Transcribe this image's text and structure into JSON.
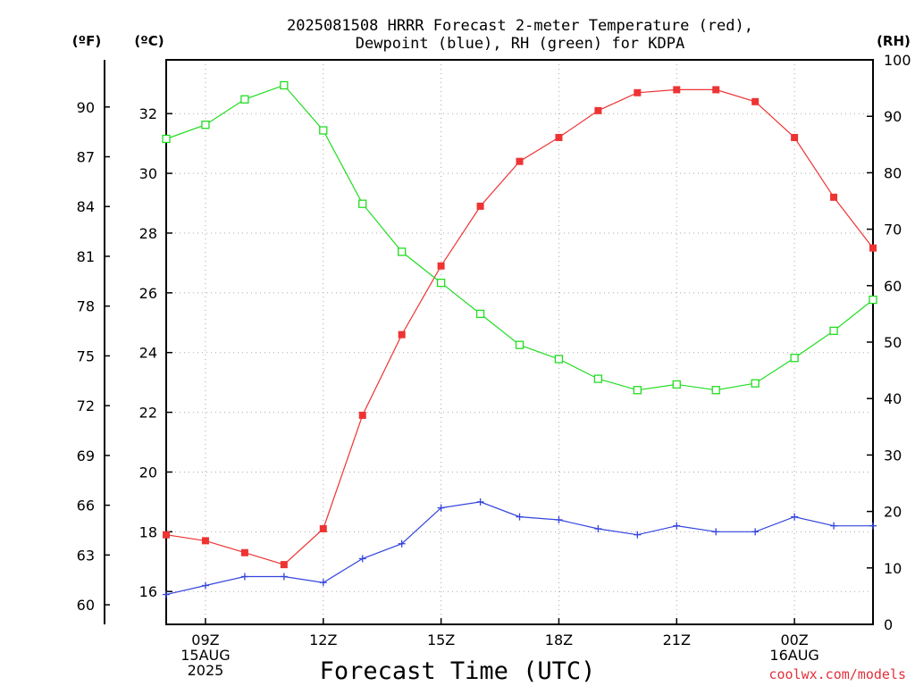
{
  "chart_data": {
    "type": "line",
    "title_line1": "2025081508 HRRR Forecast 2-meter Temperature (red),",
    "title_line2": "Dewpoint (blue), RH (green) for KDPA",
    "xlabel": "Forecast Time (UTC)",
    "credit": "coolwx.com/models",
    "x_ticks": [
      {
        "hour": 9,
        "lines": [
          "09Z",
          "15AUG",
          "2025"
        ]
      },
      {
        "hour": 12,
        "lines": [
          "12Z"
        ]
      },
      {
        "hour": 15,
        "lines": [
          "15Z"
        ]
      },
      {
        "hour": 18,
        "lines": [
          "18Z"
        ]
      },
      {
        "hour": 21,
        "lines": [
          "21Z"
        ]
      },
      {
        "hour": 24,
        "lines": [
          "00Z",
          "16AUG"
        ]
      }
    ],
    "xlim": [
      8,
      26
    ],
    "left_axis_f": {
      "label": "(ºF)",
      "ticks": [
        "60",
        "63",
        "66",
        "69",
        "72",
        "75",
        "78",
        "81",
        "84",
        "87",
        "90"
      ]
    },
    "left_axis_c": {
      "label": "(ºC)",
      "ylim": [
        14.9,
        33.8
      ],
      "ticks": [
        "16",
        "18",
        "20",
        "22",
        "24",
        "26",
        "28",
        "30",
        "32"
      ]
    },
    "right_axis_rh": {
      "label": "(RH)",
      "ylim": [
        0,
        100
      ],
      "ticks": [
        "0",
        "10",
        "20",
        "30",
        "40",
        "50",
        "60",
        "70",
        "80",
        "90",
        "100"
      ]
    },
    "x": [
      8,
      9,
      10,
      11,
      12,
      13,
      14,
      15,
      16,
      17,
      18,
      19,
      20,
      21,
      22,
      23,
      24,
      25,
      26
    ],
    "series": [
      {
        "name": "Temperature",
        "color": "#ee3333",
        "marker": "filled-square",
        "axis": "c",
        "values": [
          17.9,
          17.7,
          17.3,
          16.9,
          18.1,
          21.9,
          24.6,
          26.9,
          28.9,
          30.4,
          31.2,
          32.1,
          32.7,
          32.8,
          32.8,
          32.4,
          31.2,
          29.2,
          27.5
        ]
      },
      {
        "name": "Dewpoint",
        "color": "#3344dd",
        "marker": "plus",
        "axis": "c",
        "values": [
          15.9,
          16.2,
          16.5,
          16.5,
          16.3,
          17.1,
          17.6,
          18.8,
          19.0,
          18.5,
          18.4,
          18.1,
          17.9,
          18.2,
          18.0,
          18.0,
          18.5,
          18.2,
          18.2
        ]
      },
      {
        "name": "RH",
        "color": "#22dd22",
        "marker": "open-square",
        "axis": "rh",
        "values": [
          86,
          88.5,
          93,
          95.5,
          87.5,
          74.5,
          66,
          60.5,
          55,
          49.5,
          47,
          43.5,
          41.5,
          42.5,
          41.5,
          42.7,
          47.2,
          52,
          57.5
        ]
      }
    ],
    "grid": true
  }
}
